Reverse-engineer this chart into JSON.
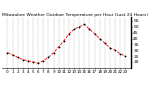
{
  "title": "Milwaukee Weather Outdoor Temperature per Hour (Last 24 Hours)",
  "hours": [
    0,
    1,
    2,
    3,
    4,
    5,
    6,
    7,
    8,
    9,
    10,
    11,
    12,
    13,
    14,
    15,
    16,
    17,
    18,
    19,
    20,
    21,
    22,
    23
  ],
  "temps": [
    28,
    26,
    24,
    22,
    21,
    20,
    19,
    21,
    24,
    28,
    33,
    38,
    44,
    48,
    50,
    52,
    48,
    44,
    40,
    36,
    32,
    30,
    27,
    25
  ],
  "line_color": "#ff0000",
  "marker_color": "#000000",
  "bg_color": "#ffffff",
  "grid_color": "#aaaaaa",
  "ylim": [
    15,
    58
  ],
  "yticks": [
    20,
    25,
    30,
    35,
    40,
    45,
    50,
    55
  ],
  "ylabel_fontsize": 3.2,
  "xlabel_fontsize": 3.0,
  "title_fontsize": 3.2,
  "figwidth": 1.6,
  "figheight": 0.87,
  "dpi": 100
}
